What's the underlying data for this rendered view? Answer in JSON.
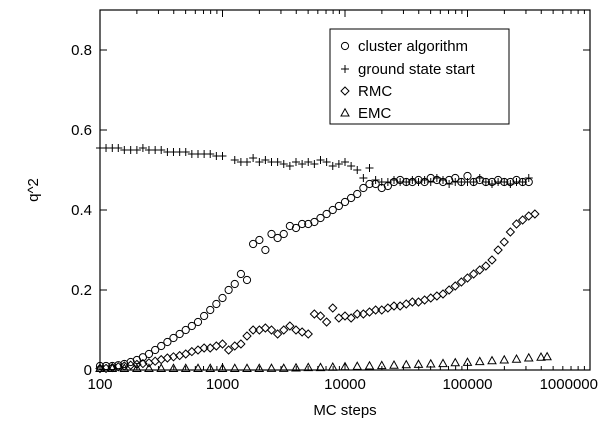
{
  "chart_data": {
    "type": "scatter",
    "xlabel": "MC steps",
    "ylabel": "q^2",
    "x_scale": "log",
    "xlim": [
      100,
      1000000
    ],
    "ylim": [
      0,
      0.9
    ],
    "x_ticks": [
      "100",
      "1000",
      "10000",
      "100000",
      "1000000"
    ],
    "x_tick_values": [
      100,
      1000,
      10000,
      100000,
      1000000
    ],
    "y_ticks": [
      "0",
      "0.2",
      "0.4",
      "0.6",
      "0.8"
    ],
    "y_tick_values": [
      0,
      0.2,
      0.4,
      0.6,
      0.8
    ],
    "grid": false,
    "legend_position": "top-right",
    "series": [
      {
        "name": "cluster algorithm",
        "marker": "circle",
        "points": [
          [
            100,
            0.01
          ],
          [
            112,
            0.01
          ],
          [
            126,
            0.01
          ],
          [
            141,
            0.012
          ],
          [
            158,
            0.015
          ],
          [
            178,
            0.02
          ],
          [
            200,
            0.025
          ],
          [
            224,
            0.032
          ],
          [
            251,
            0.04
          ],
          [
            282,
            0.05
          ],
          [
            316,
            0.06
          ],
          [
            355,
            0.07
          ],
          [
            398,
            0.08
          ],
          [
            447,
            0.09
          ],
          [
            501,
            0.1
          ],
          [
            562,
            0.11
          ],
          [
            631,
            0.12
          ],
          [
            708,
            0.135
          ],
          [
            794,
            0.15
          ],
          [
            891,
            0.165
          ],
          [
            1000,
            0.18
          ],
          [
            1122,
            0.2
          ],
          [
            1259,
            0.215
          ],
          [
            1413,
            0.24
          ],
          [
            1585,
            0.225
          ],
          [
            1778,
            0.315
          ],
          [
            2000,
            0.325
          ],
          [
            2239,
            0.3
          ],
          [
            2512,
            0.34
          ],
          [
            2818,
            0.33
          ],
          [
            3162,
            0.34
          ],
          [
            3548,
            0.36
          ],
          [
            3981,
            0.355
          ],
          [
            4467,
            0.365
          ],
          [
            5012,
            0.365
          ],
          [
            5623,
            0.37
          ],
          [
            6310,
            0.38
          ],
          [
            7079,
            0.39
          ],
          [
            7943,
            0.4
          ],
          [
            8913,
            0.41
          ],
          [
            10000,
            0.42
          ],
          [
            11220,
            0.43
          ],
          [
            12589,
            0.44
          ],
          [
            14125,
            0.455
          ],
          [
            15849,
            0.465
          ],
          [
            17783,
            0.465
          ],
          [
            19953,
            0.455
          ],
          [
            22387,
            0.46
          ],
          [
            25119,
            0.47
          ],
          [
            28184,
            0.475
          ],
          [
            31623,
            0.47
          ],
          [
            35481,
            0.47
          ],
          [
            39811,
            0.475
          ],
          [
            44668,
            0.47
          ],
          [
            50119,
            0.48
          ],
          [
            56234,
            0.475
          ],
          [
            63096,
            0.47
          ],
          [
            70795,
            0.475
          ],
          [
            79433,
            0.48
          ],
          [
            89125,
            0.47
          ],
          [
            100000,
            0.485
          ],
          [
            112202,
            0.47
          ],
          [
            125893,
            0.475
          ],
          [
            141254,
            0.47
          ],
          [
            158489,
            0.47
          ],
          [
            177828,
            0.475
          ],
          [
            199526,
            0.47
          ],
          [
            223872,
            0.47
          ],
          [
            251189,
            0.475
          ],
          [
            281838,
            0.47
          ],
          [
            316228,
            0.47
          ]
        ]
      },
      {
        "name": "ground state start",
        "marker": "plus",
        "points": [
          [
            100,
            0.555
          ],
          [
            112,
            0.555
          ],
          [
            126,
            0.555
          ],
          [
            141,
            0.555
          ],
          [
            158,
            0.55
          ],
          [
            178,
            0.55
          ],
          [
            200,
            0.55
          ],
          [
            224,
            0.555
          ],
          [
            251,
            0.55
          ],
          [
            282,
            0.55
          ],
          [
            316,
            0.55
          ],
          [
            355,
            0.545
          ],
          [
            398,
            0.545
          ],
          [
            447,
            0.545
          ],
          [
            501,
            0.545
          ],
          [
            562,
            0.54
          ],
          [
            631,
            0.54
          ],
          [
            708,
            0.54
          ],
          [
            794,
            0.54
          ],
          [
            891,
            0.535
          ],
          [
            1000,
            0.535
          ],
          [
            1259,
            0.525
          ],
          [
            1413,
            0.52
          ],
          [
            1585,
            0.52
          ],
          [
            1778,
            0.53
          ],
          [
            2000,
            0.52
          ],
          [
            2239,
            0.525
          ],
          [
            2512,
            0.52
          ],
          [
            2818,
            0.52
          ],
          [
            3162,
            0.515
          ],
          [
            3548,
            0.51
          ],
          [
            3981,
            0.52
          ],
          [
            4467,
            0.515
          ],
          [
            5012,
            0.52
          ],
          [
            5623,
            0.515
          ],
          [
            6310,
            0.525
          ],
          [
            7079,
            0.52
          ],
          [
            7943,
            0.51
          ],
          [
            8913,
            0.515
          ],
          [
            10000,
            0.52
          ],
          [
            11220,
            0.51
          ],
          [
            12589,
            0.5
          ],
          [
            14125,
            0.48
          ],
          [
            15849,
            0.505
          ],
          [
            17783,
            0.475
          ],
          [
            19953,
            0.47
          ],
          [
            22387,
            0.47
          ],
          [
            25119,
            0.475
          ],
          [
            28184,
            0.47
          ],
          [
            31623,
            0.47
          ],
          [
            35481,
            0.475
          ],
          [
            39811,
            0.47
          ],
          [
            44668,
            0.475
          ],
          [
            50119,
            0.47
          ],
          [
            56234,
            0.48
          ],
          [
            63096,
            0.475
          ],
          [
            70795,
            0.465
          ],
          [
            79433,
            0.47
          ],
          [
            89125,
            0.47
          ],
          [
            100000,
            0.47
          ],
          [
            112202,
            0.47
          ],
          [
            125893,
            0.48
          ],
          [
            141254,
            0.47
          ],
          [
            158489,
            0.465
          ],
          [
            177828,
            0.47
          ],
          [
            199526,
            0.47
          ],
          [
            223872,
            0.465
          ],
          [
            251189,
            0.47
          ],
          [
            281838,
            0.47
          ],
          [
            316228,
            0.48
          ]
        ]
      },
      {
        "name": "RMC",
        "marker": "diamond",
        "points": [
          [
            100,
            0.002
          ],
          [
            112,
            0.004
          ],
          [
            126,
            0.006
          ],
          [
            141,
            0.008
          ],
          [
            158,
            0.01
          ],
          [
            178,
            0.012
          ],
          [
            200,
            0.014
          ],
          [
            224,
            0.016
          ],
          [
            251,
            0.018
          ],
          [
            282,
            0.022
          ],
          [
            316,
            0.026
          ],
          [
            355,
            0.03
          ],
          [
            398,
            0.033
          ],
          [
            447,
            0.036
          ],
          [
            501,
            0.04
          ],
          [
            562,
            0.046
          ],
          [
            631,
            0.05
          ],
          [
            708,
            0.055
          ],
          [
            794,
            0.055
          ],
          [
            891,
            0.06
          ],
          [
            1000,
            0.065
          ],
          [
            1122,
            0.05
          ],
          [
            1259,
            0.06
          ],
          [
            1413,
            0.065
          ],
          [
            1585,
            0.085
          ],
          [
            1778,
            0.1
          ],
          [
            2000,
            0.1
          ],
          [
            2239,
            0.105
          ],
          [
            2512,
            0.1
          ],
          [
            2818,
            0.09
          ],
          [
            3162,
            0.1
          ],
          [
            3548,
            0.11
          ],
          [
            3981,
            0.1
          ],
          [
            4467,
            0.095
          ],
          [
            5012,
            0.09
          ],
          [
            5623,
            0.14
          ],
          [
            6310,
            0.135
          ],
          [
            7079,
            0.12
          ],
          [
            7943,
            0.155
          ],
          [
            8913,
            0.13
          ],
          [
            10000,
            0.135
          ],
          [
            11220,
            0.13
          ],
          [
            12589,
            0.14
          ],
          [
            14125,
            0.14
          ],
          [
            15849,
            0.145
          ],
          [
            17783,
            0.15
          ],
          [
            19953,
            0.15
          ],
          [
            22387,
            0.155
          ],
          [
            25119,
            0.16
          ],
          [
            28184,
            0.16
          ],
          [
            31623,
            0.165
          ],
          [
            35481,
            0.17
          ],
          [
            39811,
            0.17
          ],
          [
            44668,
            0.175
          ],
          [
            50119,
            0.18
          ],
          [
            56234,
            0.185
          ],
          [
            63096,
            0.19
          ],
          [
            70795,
            0.2
          ],
          [
            79433,
            0.21
          ],
          [
            89125,
            0.22
          ],
          [
            100000,
            0.23
          ],
          [
            112202,
            0.24
          ],
          [
            125893,
            0.25
          ],
          [
            141254,
            0.26
          ],
          [
            158489,
            0.275
          ],
          [
            177828,
            0.3
          ],
          [
            199526,
            0.32
          ],
          [
            223872,
            0.345
          ],
          [
            251189,
            0.365
          ],
          [
            281838,
            0.375
          ],
          [
            316228,
            0.385
          ],
          [
            354813,
            0.39
          ]
        ]
      },
      {
        "name": "EMC",
        "marker": "triangle",
        "points": [
          [
            100,
            0.0
          ],
          [
            126,
            0.0
          ],
          [
            158,
            0.0
          ],
          [
            200,
            0.0
          ],
          [
            251,
            0.0
          ],
          [
            316,
            0.001
          ],
          [
            398,
            0.001
          ],
          [
            501,
            0.001
          ],
          [
            631,
            0.001
          ],
          [
            794,
            0.002
          ],
          [
            1000,
            0.002
          ],
          [
            1259,
            0.002
          ],
          [
            1585,
            0.003
          ],
          [
            1995,
            0.003
          ],
          [
            2512,
            0.004
          ],
          [
            3162,
            0.004
          ],
          [
            3981,
            0.005
          ],
          [
            5012,
            0.006
          ],
          [
            6310,
            0.006
          ],
          [
            7943,
            0.007
          ],
          [
            10000,
            0.008
          ],
          [
            12589,
            0.009
          ],
          [
            15849,
            0.01
          ],
          [
            19953,
            0.011
          ],
          [
            25119,
            0.012
          ],
          [
            31623,
            0.013
          ],
          [
            39811,
            0.014
          ],
          [
            50119,
            0.015
          ],
          [
            63096,
            0.016
          ],
          [
            79433,
            0.018
          ],
          [
            100000,
            0.019
          ],
          [
            125893,
            0.021
          ],
          [
            158489,
            0.023
          ],
          [
            199526,
            0.025
          ],
          [
            251189,
            0.027
          ],
          [
            316228,
            0.03
          ],
          [
            398107,
            0.032
          ],
          [
            446684,
            0.033
          ]
        ]
      }
    ]
  }
}
